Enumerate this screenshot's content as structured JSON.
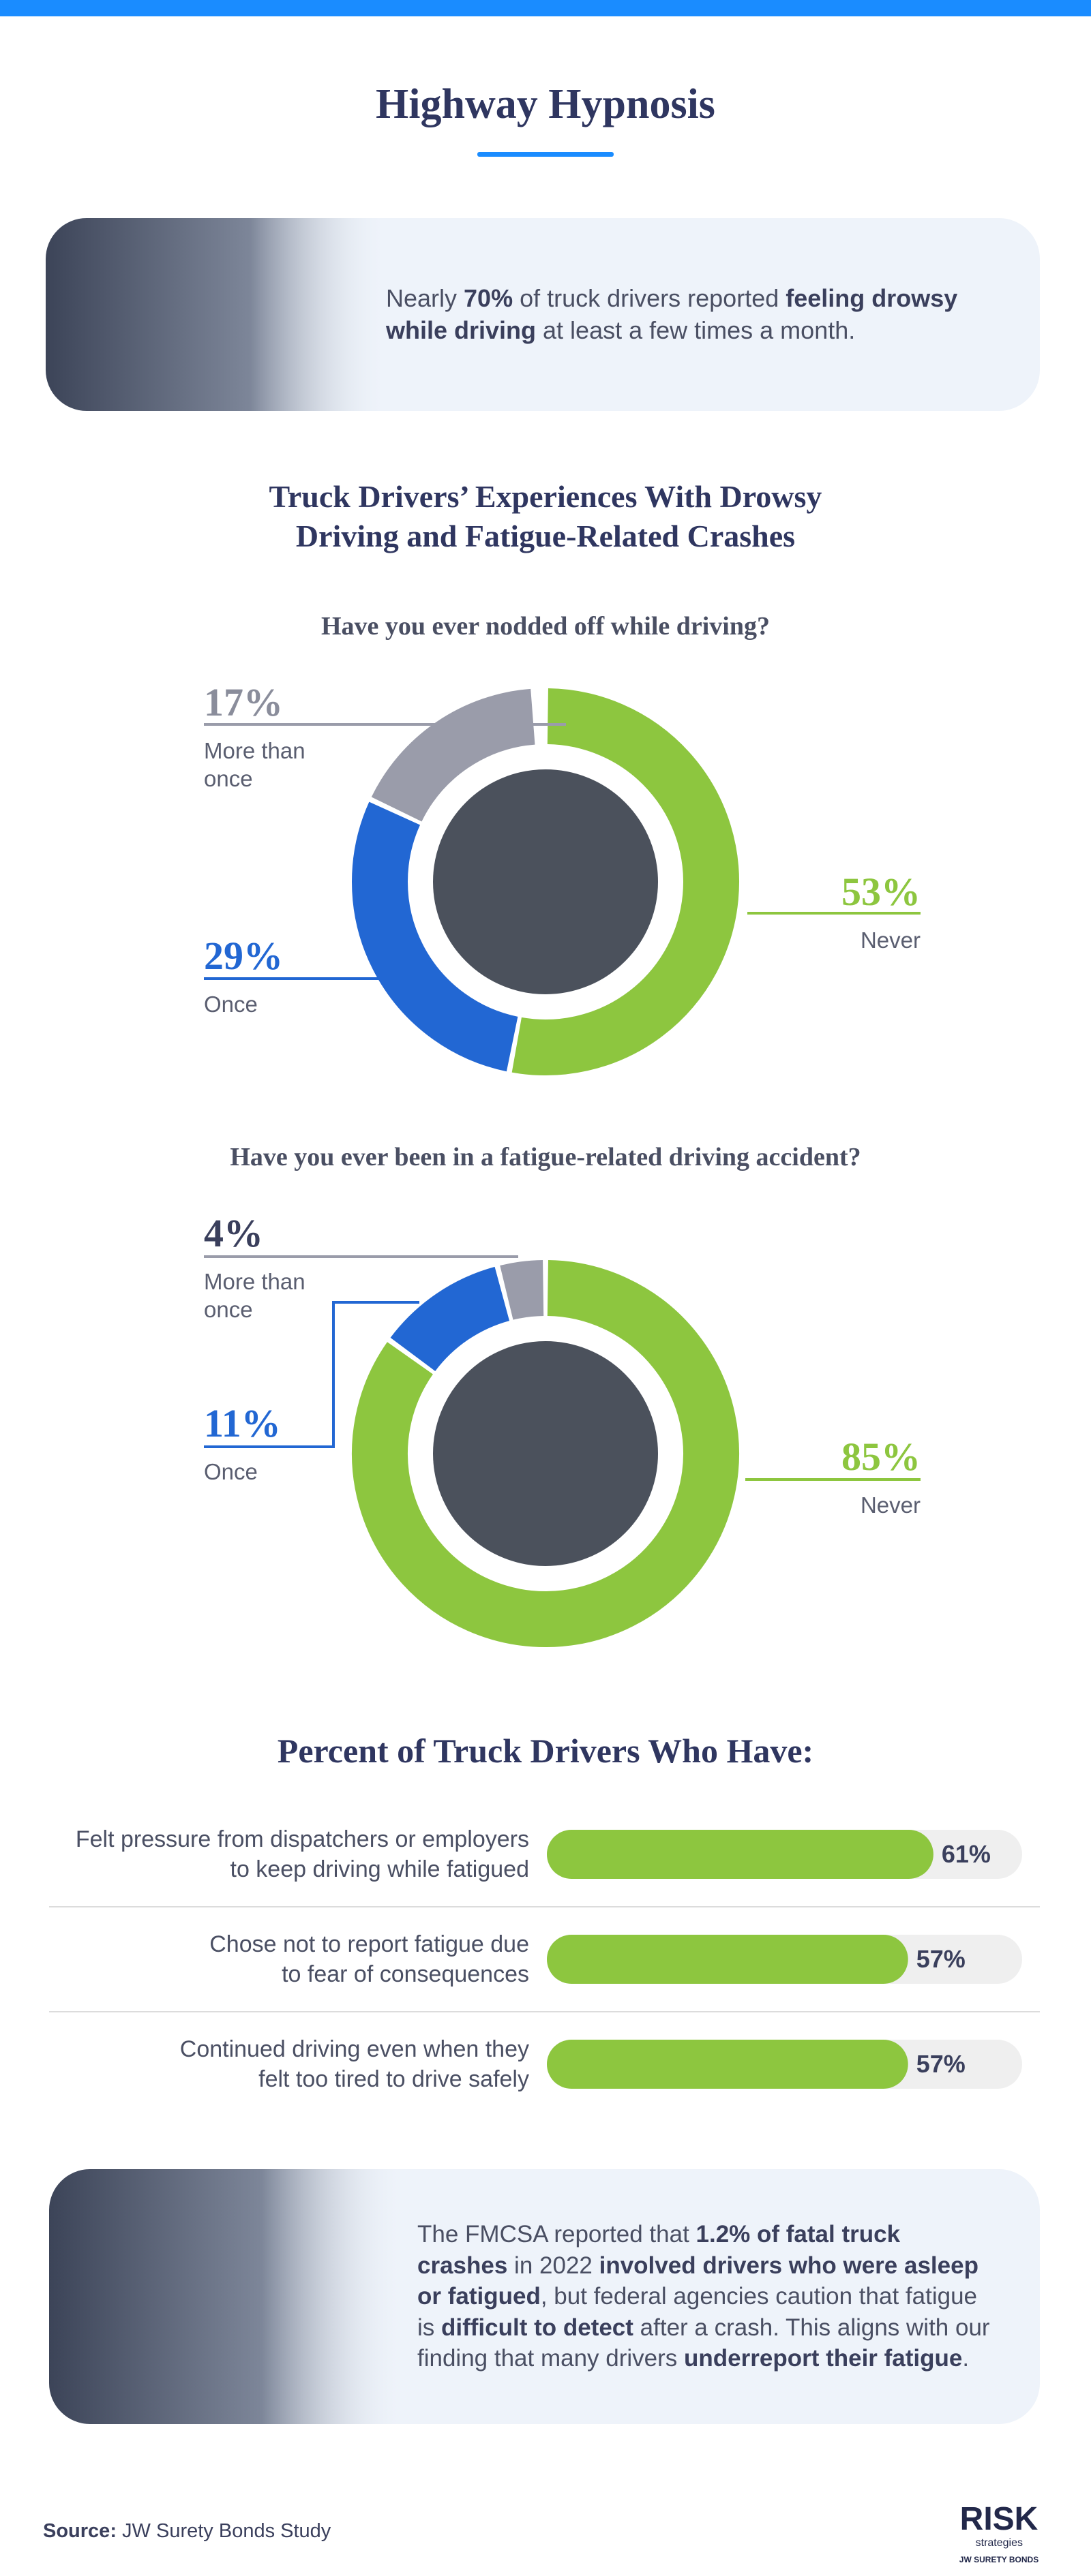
{
  "title": "Highway Hypnosis",
  "callouts": [
    {
      "segments": [
        {
          "text": "Nearly "
        },
        {
          "text": "70%",
          "bold": true
        },
        {
          "text": " of truck drivers reported "
        },
        {
          "text": "feeling drowsy while driving",
          "bold": true
        },
        {
          "text": " at least a few times a month."
        }
      ]
    },
    {
      "segments": [
        {
          "text": "The FMCSA reported that "
        },
        {
          "text": "1.2% of fatal truck crashes",
          "bold": true
        },
        {
          "text": " in 2022 "
        },
        {
          "text": "involved drivers who were asleep or fatigued",
          "bold": true
        },
        {
          "text": ", but federal agencies caution that fatigue is "
        },
        {
          "text": "difficult to detect",
          "bold": true
        },
        {
          "text": " after a crash. This aligns with our finding that many drivers "
        },
        {
          "text": "underreport their fatigue",
          "bold": true
        },
        {
          "text": "."
        }
      ]
    }
  ],
  "section_title": "Truck Drivers’ Experiences With Drowsy Driving and Fatigue-Related Crashes",
  "chart_data": [
    {
      "type": "donut",
      "title": "Have you ever nodded off while driving?",
      "categories": [
        "Never",
        "Once",
        "More than once"
      ],
      "values": [
        53,
        29,
        17
      ],
      "value_labels": [
        "53%",
        "29%",
        "17%"
      ],
      "colors": [
        "#8dc63f",
        "#2267d3",
        "#9a9caa"
      ],
      "label_colors": [
        "#8dc63f",
        "#2267d3",
        "#8a8d9b"
      ]
    },
    {
      "type": "donut",
      "title": "Have you ever been in a fatigue-related driving accident?",
      "categories": [
        "Never",
        "Once",
        "More than once"
      ],
      "values": [
        85,
        11,
        4
      ],
      "value_labels": [
        "85%",
        "11%",
        "4%"
      ],
      "colors": [
        "#8dc63f",
        "#2267d3",
        "#9a9caa"
      ],
      "label_colors": [
        "#8dc63f",
        "#2267d3",
        "#3a3f5c"
      ]
    },
    {
      "type": "bar",
      "title": "Percent of Truck Drivers Who Have:",
      "categories": [
        "Felt pressure from dispatchers or employers to keep driving while fatigued",
        "Chose not to report fatigue due to fear of consequences",
        "Continued driving even when they felt too tired to drive safely"
      ],
      "values": [
        61,
        57,
        57
      ],
      "value_labels": [
        "61%",
        "57%",
        "57%"
      ],
      "xlim": [
        0,
        75
      ],
      "color": "#8dc63f"
    }
  ],
  "source": {
    "label": "Source:",
    "text": "JW Surety Bonds Study"
  },
  "logo": {
    "name": "RISK",
    "sub": "strategies",
    "tagline": "JW SURETY BONDS"
  }
}
